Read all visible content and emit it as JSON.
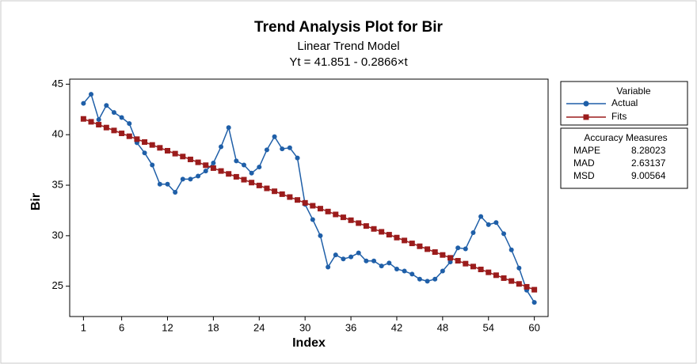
{
  "chart_data": {
    "type": "line",
    "title": "Trend Analysis Plot for Bir",
    "subtitle": "Linear Trend Model",
    "equation": "Yt = 41.851 - 0.2866×t",
    "x_label": "Index",
    "y_label": "Bir",
    "x": [
      1,
      2,
      3,
      4,
      5,
      6,
      7,
      8,
      9,
      10,
      11,
      12,
      13,
      14,
      15,
      16,
      17,
      18,
      19,
      20,
      21,
      22,
      23,
      24,
      25,
      26,
      27,
      28,
      29,
      30,
      31,
      32,
      33,
      34,
      35,
      36,
      37,
      38,
      39,
      40,
      41,
      42,
      43,
      44,
      45,
      46,
      47,
      48,
      49,
      50,
      51,
      52,
      53,
      54,
      55,
      56,
      57,
      58,
      59,
      60
    ],
    "series": [
      {
        "name": "Actual",
        "color": "#1f5fa8",
        "marker": "circle",
        "values": [
          43.1,
          44.0,
          41.5,
          42.9,
          42.2,
          41.7,
          41.1,
          39.2,
          38.2,
          37.0,
          35.1,
          35.1,
          34.3,
          35.6,
          35.6,
          35.9,
          36.4,
          37.2,
          38.8,
          40.7,
          37.4,
          37.0,
          36.2,
          36.8,
          38.5,
          39.8,
          38.6,
          38.7,
          37.7,
          33.1,
          31.6,
          30.0,
          26.9,
          28.1,
          27.7,
          27.9,
          28.3,
          27.5,
          27.5,
          27.0,
          27.3,
          26.7,
          26.5,
          26.2,
          25.7,
          25.5,
          25.7,
          26.5,
          27.4,
          28.8,
          28.7,
          30.3,
          31.9,
          31.1,
          31.3,
          30.2,
          28.6,
          26.8,
          24.6,
          23.4
        ]
      },
      {
        "name": "Fits",
        "color": "#9b1c1c",
        "marker": "square",
        "values": [
          41.5644,
          41.2778,
          40.9912,
          40.7046,
          40.418,
          40.1314,
          39.8448,
          39.5582,
          39.2716,
          38.985,
          38.6984,
          38.4118,
          38.1252,
          37.8386,
          37.552,
          37.2654,
          36.9788,
          36.6922,
          36.4056,
          36.119,
          35.8324,
          35.5458,
          35.2592,
          34.9726,
          34.686,
          34.3994,
          34.1128,
          33.8262,
          33.5396,
          33.253,
          32.9664,
          32.6798,
          32.3932,
          32.1066,
          31.82,
          31.5334,
          31.2468,
          30.9602,
          30.6736,
          30.387,
          30.1004,
          29.8138,
          29.5272,
          29.2406,
          28.954,
          28.6674,
          28.3808,
          28.0942,
          27.8076,
          27.521,
          27.2344,
          26.9478,
          26.6612,
          26.3746,
          26.088,
          25.8014,
          25.5148,
          25.2282,
          24.9416,
          24.655
        ]
      }
    ],
    "xlim": [
      -0.8,
      61.8
    ],
    "xticks": [
      1,
      6,
      12,
      18,
      24,
      30,
      36,
      42,
      48,
      54,
      60
    ],
    "ylim": [
      22,
      45.5
    ],
    "yticks": [
      25,
      30,
      35,
      40,
      45
    ],
    "legend_title": "Variable",
    "accuracy": {
      "title": "Accuracy Measures",
      "rows": [
        {
          "label": "MAPE",
          "value": 8.28023
        },
        {
          "label": "MAD",
          "value": 2.63137
        },
        {
          "label": "MSD",
          "value": 9.00564
        }
      ]
    }
  }
}
